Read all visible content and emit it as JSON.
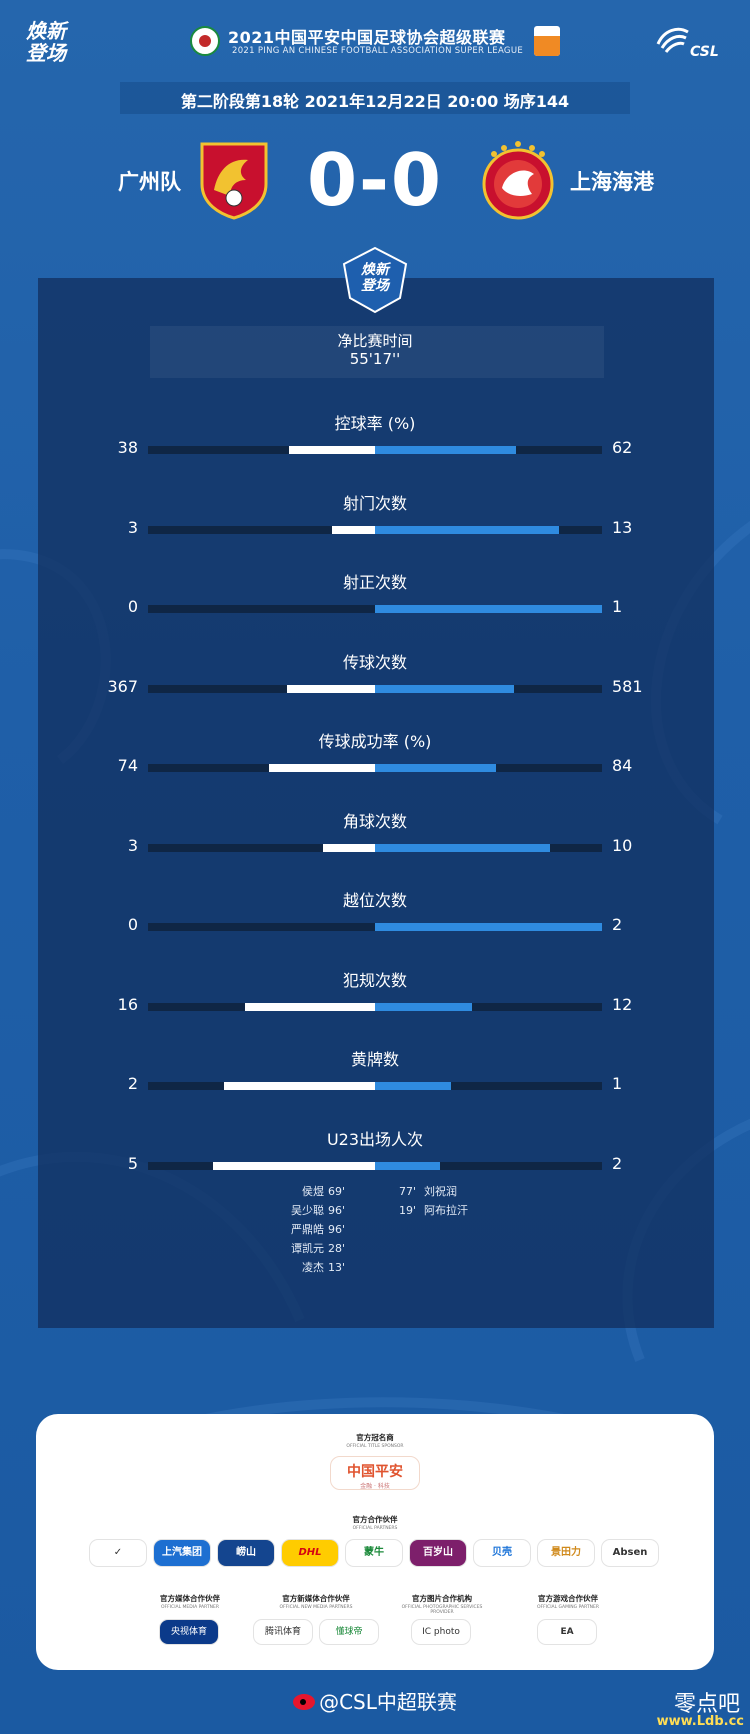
{
  "header": {
    "campaign_logo": "焕新\n登场",
    "league_title": "2021中国平安中国足球协会超级联赛",
    "league_subtitle": "2021 PING AN CHINESE FOOTBALL ASSOCIATION SUPER LEAGUE",
    "csl_text": "CSL",
    "match_info": "第二阶段第18轮  2021年12月22日 20:00 场序144"
  },
  "match": {
    "home_team": "广州队",
    "away_team": "上海海港",
    "score": "0-0"
  },
  "panel": {
    "badge_text": "焕新\n登场",
    "time_label": "净比赛时间",
    "time_value": "55'17''"
  },
  "stats": [
    {
      "title": "控球率 (%)",
      "home": "38",
      "away": "62",
      "home_value": 38,
      "away_value": 62
    },
    {
      "title": "射门次数",
      "home": "3",
      "away": "13",
      "home_value": 3,
      "away_value": 13
    },
    {
      "title": "射正次数",
      "home": "0",
      "away": "1",
      "home_value": 0,
      "away_value": 1
    },
    {
      "title": "传球次数",
      "home": "367",
      "away": "581",
      "home_value": 367,
      "away_value": 581
    },
    {
      "title": "传球成功率 (%)",
      "home": "74",
      "away": "84",
      "home_value": 74,
      "away_value": 84
    },
    {
      "title": "角球次数",
      "home": "3",
      "away": "10",
      "home_value": 3,
      "away_value": 10
    },
    {
      "title": "越位次数",
      "home": "0",
      "away": "2",
      "home_value": 0,
      "away_value": 2
    },
    {
      "title": "犯规次数",
      "home": "16",
      "away": "12",
      "home_value": 16,
      "away_value": 12
    },
    {
      "title": "黄牌数",
      "home": "2",
      "away": "1",
      "home_value": 2,
      "away_value": 1
    },
    {
      "title": "U23出场人次",
      "home": "5",
      "away": "2",
      "home_value": 5,
      "away_value": 2
    }
  ],
  "u23": {
    "home": [
      {
        "name": "侯煜",
        "minutes": "69'"
      },
      {
        "name": "吴少聪",
        "minutes": "96'"
      },
      {
        "name": "严鼎皓",
        "minutes": "96'"
      },
      {
        "name": "谭凯元",
        "minutes": "28'"
      },
      {
        "name": "凌杰",
        "minutes": "13'"
      }
    ],
    "away": [
      {
        "name": "刘祝润",
        "minutes": "77'"
      },
      {
        "name": "阿布拉汗",
        "minutes": "19'"
      }
    ]
  },
  "sponsors": {
    "title_heading": "官方冠名商",
    "title_heading_en": "OFFICIAL TITLE SPONSOR",
    "title_sponsor": "中国平安",
    "title_sponsor_sub": "金融 · 科技",
    "partners_heading": "官方合作伙伴",
    "partners_heading_en": "OFFICIAL PARTNERS",
    "partners": [
      "✓",
      "上汽集团",
      "崂山",
      "DHL",
      "蒙牛",
      "百岁山",
      "贝壳",
      "景田力",
      "Absen"
    ],
    "media_headings": [
      {
        "cn": "官方媒体合作伙伴",
        "en": "OFFICIAL MEDIA PARTNER"
      },
      {
        "cn": "官方新媒体合作伙伴",
        "en": "OFFICIAL NEW MEDIA PARTNERS"
      },
      {
        "cn": "官方图片合作机构",
        "en": "OFFICIAL PHOTOGRAPHIC SERVICES PROVIDER"
      },
      {
        "cn": "官方游戏合作伙伴",
        "en": "OFFICIAL GAMING PARTNER"
      }
    ],
    "media": [
      "央视体育",
      "腾讯体育",
      "懂球帝",
      "IC photo",
      "EA"
    ]
  },
  "footer": {
    "weibo": "@CSL中超联赛",
    "watermark": "零点吧",
    "watermark_sub": "www.Ldb.cc"
  },
  "colors": {
    "background": "#1f5fa8",
    "home_bar": "#ffffff",
    "away_bar": "#2f8be0",
    "track": "#0f2645"
  }
}
